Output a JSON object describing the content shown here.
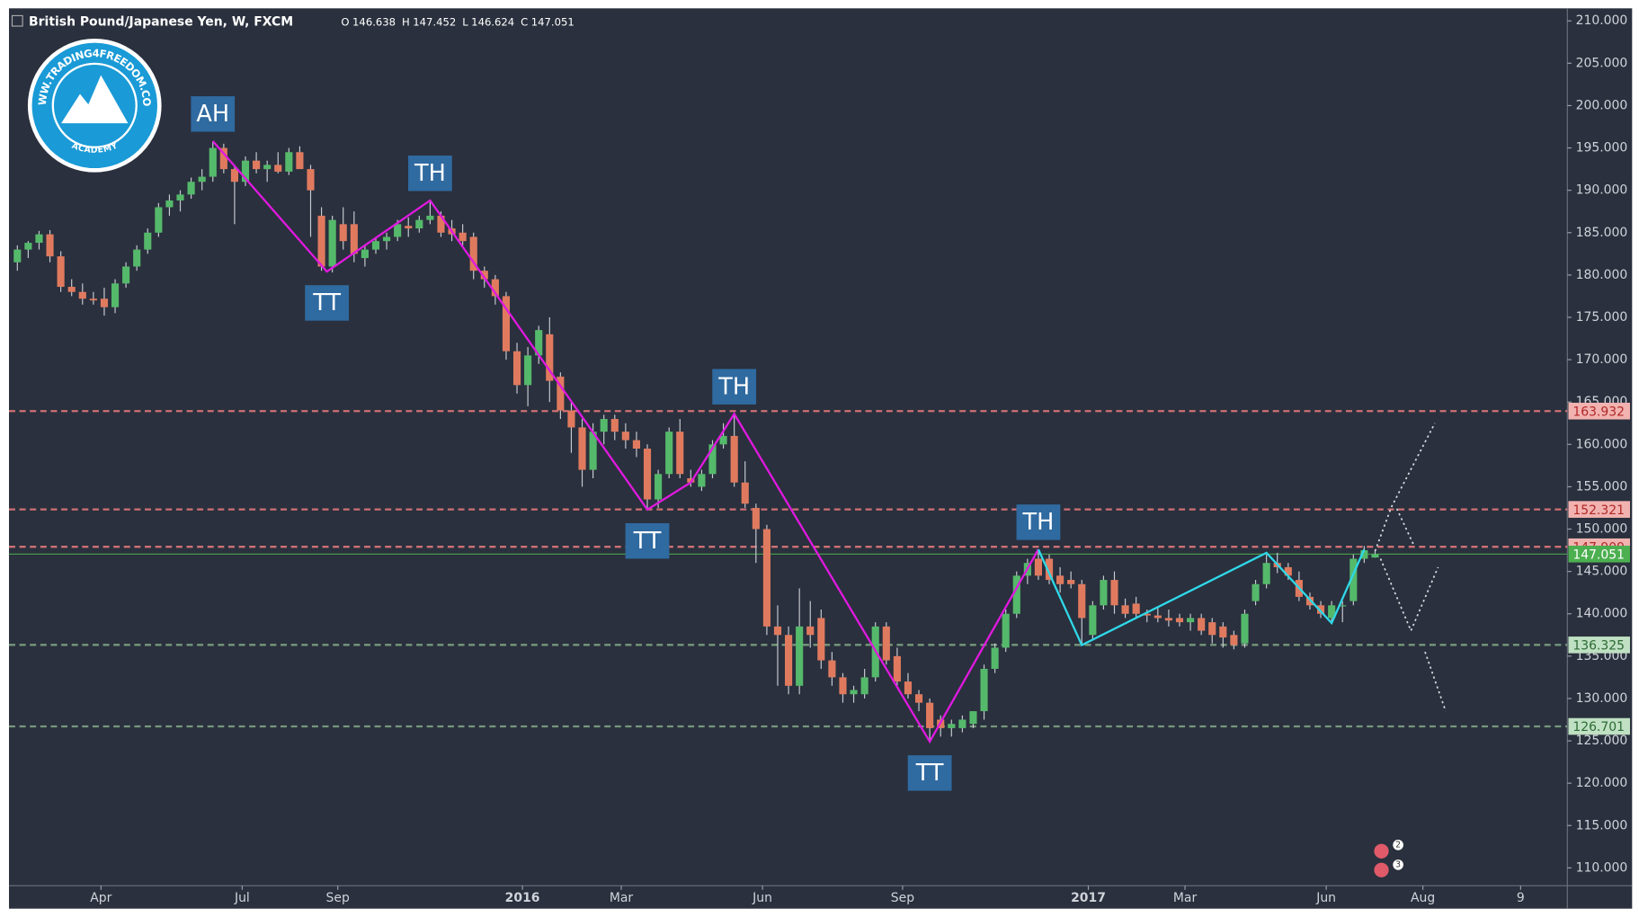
{
  "header": {
    "symbol": "British Pound/Japanese Yen, W, FXCM",
    "ohlc": [
      {
        "key": "O",
        "value": 146.638
      },
      {
        "key": "H",
        "value": 147.452
      },
      {
        "key": "L",
        "value": 146.624
      },
      {
        "key": "C",
        "value": 147.051
      }
    ]
  },
  "logo": {
    "ring_text": "WWW.TRADING4FREEDOM.COM",
    "bottom_text": "ACADEMY"
  },
  "badges": [
    "2",
    "3"
  ],
  "chart_data": {
    "type": "candlestick",
    "up_color": "#55b96b",
    "down_color": "#e07a5f",
    "wick_color": "#c9ccd3",
    "xlim": [
      -0.77,
      142.7
    ],
    "xticks": [
      {
        "value": 7.7,
        "label": "Apr"
      },
      {
        "value": 20.7,
        "label": "Jul"
      },
      {
        "value": 29.5,
        "label": "Sep"
      },
      {
        "value": 46.5,
        "label": "2016"
      },
      {
        "value": 55.6,
        "label": "Mar"
      },
      {
        "value": 68.6,
        "label": "Jun"
      },
      {
        "value": 81.5,
        "label": "Sep"
      },
      {
        "value": 98.6,
        "label": "2017"
      },
      {
        "value": 107.5,
        "label": "Mar"
      },
      {
        "value": 120.5,
        "label": "Jun"
      },
      {
        "value": 129.4,
        "label": "Aug"
      },
      {
        "value": 138.4,
        "label": "9"
      }
    ],
    "ylim": [
      107.9,
      211.48
    ],
    "yticks": [
      {
        "value": 110,
        "label": "110.000"
      },
      {
        "value": 115,
        "label": "115.000"
      },
      {
        "value": 120,
        "label": "120.000"
      },
      {
        "value": 125,
        "label": "125.000"
      },
      {
        "value": 130,
        "label": "130.000"
      },
      {
        "value": 135,
        "label": "135.000"
      },
      {
        "value": 140,
        "label": "140.000"
      },
      {
        "value": 145,
        "label": "145.000"
      },
      {
        "value": 150,
        "label": "150.000"
      },
      {
        "value": 155,
        "label": "155.000"
      },
      {
        "value": 160,
        "label": "160.000"
      },
      {
        "value": 165,
        "label": "165.000"
      },
      {
        "value": 170,
        "label": "170.000"
      },
      {
        "value": 175,
        "label": "175.000"
      },
      {
        "value": 180,
        "label": "180.000"
      },
      {
        "value": 185,
        "label": "185.000"
      },
      {
        "value": 190,
        "label": "190.000"
      },
      {
        "value": 195,
        "label": "195.000"
      },
      {
        "value": 200,
        "label": "200.000"
      },
      {
        "value": 205,
        "label": "205.000"
      },
      {
        "value": 210,
        "label": "210.000"
      }
    ],
    "candles": [
      [
        181.5,
        183.5,
        180.5,
        183
      ],
      [
        183,
        184,
        182,
        183.8
      ],
      [
        183.8,
        185.2,
        183,
        184.8
      ],
      [
        184.8,
        185.3,
        181.5,
        182.2
      ],
      [
        182.2,
        182.8,
        178,
        178.6
      ],
      [
        178.6,
        179.5,
        177.5,
        178
      ],
      [
        178,
        179,
        176.5,
        177.2
      ],
      [
        177.2,
        178,
        176.5,
        177
      ],
      [
        177.2,
        178.5,
        175.2,
        176.2
      ],
      [
        176.2,
        179.5,
        175.5,
        179
      ],
      [
        179,
        181.5,
        178.5,
        181
      ],
      [
        181,
        183.5,
        180.5,
        183
      ],
      [
        183,
        185.5,
        182.5,
        185
      ],
      [
        185,
        188.5,
        184.5,
        188
      ],
      [
        188,
        189.5,
        187,
        188.8
      ],
      [
        188.8,
        190,
        187.5,
        189.5
      ],
      [
        189.5,
        191.5,
        189,
        191
      ],
      [
        191,
        192.5,
        190,
        191.6
      ],
      [
        191.6,
        195.8,
        191,
        195
      ],
      [
        195,
        195.5,
        192,
        192.5
      ],
      [
        192.5,
        193,
        186,
        191
      ],
      [
        191,
        194,
        190.5,
        193.5
      ],
      [
        193.5,
        194.5,
        192,
        192.5
      ],
      [
        192.5,
        193.5,
        191,
        193
      ],
      [
        193,
        194.5,
        192,
        192.2
      ],
      [
        192.2,
        195,
        191.8,
        194.5
      ],
      [
        194.5,
        195.2,
        193,
        192.5
      ],
      [
        192.5,
        193,
        184.5,
        190
      ],
      [
        187,
        188,
        180.5,
        181
      ],
      [
        181,
        187,
        180.3,
        186.5
      ],
      [
        186,
        188,
        183,
        184
      ],
      [
        186,
        187.5,
        181.5,
        182.5
      ],
      [
        182,
        183.5,
        181,
        183
      ],
      [
        183,
        184.5,
        182.5,
        184
      ],
      [
        184,
        185,
        183,
        184.5
      ],
      [
        184.5,
        186.5,
        184,
        186
      ],
      [
        185.8,
        186.8,
        184.5,
        185.5
      ],
      [
        185.5,
        187,
        185,
        186.5
      ],
      [
        186.5,
        188.8,
        186,
        187
      ],
      [
        187,
        187.5,
        184.5,
        185
      ],
      [
        185.5,
        186.5,
        184,
        184.8
      ],
      [
        185,
        186,
        183.5,
        184
      ],
      [
        184.5,
        185,
        179.5,
        180.5
      ],
      [
        180.5,
        181,
        178.5,
        179.5
      ],
      [
        179.5,
        180,
        176.5,
        177.5
      ],
      [
        177.5,
        178,
        170,
        171
      ],
      [
        171,
        172,
        166,
        167
      ],
      [
        167,
        171.5,
        164.5,
        170.5
      ],
      [
        170.5,
        174,
        169.5,
        173.5
      ],
      [
        173,
        175,
        165,
        167.5
      ],
      [
        168,
        168.5,
        163,
        164
      ],
      [
        164,
        165,
        159,
        162
      ],
      [
        162,
        163,
        155,
        157
      ],
      [
        157,
        162.5,
        156,
        161.5
      ],
      [
        161.5,
        163.5,
        160,
        163
      ],
      [
        163,
        163.5,
        160.5,
        161.5
      ],
      [
        161.5,
        162.5,
        159.5,
        160.5
      ],
      [
        160.5,
        161.5,
        158.5,
        159.5
      ],
      [
        159.5,
        160,
        152.3,
        153.5
      ],
      [
        153.5,
        157,
        152.5,
        156.5
      ],
      [
        156.5,
        162,
        156,
        161.5
      ],
      [
        161.5,
        163,
        156,
        156.5
      ],
      [
        156,
        157,
        155,
        155.5
      ],
      [
        155,
        157,
        154.5,
        156.5
      ],
      [
        156.5,
        160.5,
        156,
        160
      ],
      [
        160,
        162.5,
        159.5,
        161
      ],
      [
        161,
        163.6,
        155,
        155.5
      ],
      [
        155.5,
        158,
        152.5,
        153
      ],
      [
        152.5,
        153,
        146,
        150
      ],
      [
        150,
        150.5,
        137.5,
        138.5
      ],
      [
        138.5,
        141,
        131.5,
        137.5
      ],
      [
        137.5,
        138.5,
        130.5,
        131.5
      ],
      [
        131.5,
        143,
        130.5,
        138.5
      ],
      [
        138.5,
        141.5,
        136,
        137.5
      ],
      [
        139.5,
        140.5,
        133.5,
        134.5
      ],
      [
        134.5,
        135.5,
        131.5,
        132.5
      ],
      [
        132.5,
        133,
        129.5,
        130.5
      ],
      [
        130.5,
        131.5,
        129.5,
        131
      ],
      [
        130.5,
        133.5,
        130,
        132.5
      ],
      [
        132.5,
        139,
        132,
        138.5
      ],
      [
        138.5,
        139,
        134,
        134.5
      ],
      [
        135,
        136,
        131.5,
        132
      ],
      [
        132,
        133,
        130,
        130.5
      ],
      [
        130.5,
        131,
        128.5,
        129.5
      ],
      [
        129.5,
        130,
        124.9,
        126.5
      ],
      [
        127.5,
        128,
        125.5,
        126.5
      ],
      [
        126.5,
        127.5,
        125.5,
        127
      ],
      [
        126.5,
        128,
        126,
        127.5
      ],
      [
        127,
        128.5,
        126.5,
        128.5
      ],
      [
        128.5,
        134,
        127.5,
        133.5
      ],
      [
        133.5,
        136.5,
        133,
        136
      ],
      [
        136,
        140.5,
        135.5,
        140
      ],
      [
        140,
        145,
        139.5,
        144.5
      ],
      [
        144.5,
        146.5,
        143.5,
        146
      ],
      [
        146.5,
        147.6,
        144,
        144.5
      ],
      [
        146.5,
        147,
        143.5,
        144
      ],
      [
        144.5,
        145.5,
        142.5,
        143.5
      ],
      [
        144,
        145,
        143,
        143.5
      ],
      [
        143.5,
        144,
        136.3,
        139.5
      ],
      [
        137.5,
        141.5,
        137,
        141
      ],
      [
        141,
        144.5,
        140.5,
        144
      ],
      [
        144,
        145,
        140,
        141
      ],
      [
        141,
        141.8,
        139.5,
        140
      ],
      [
        141.2,
        142,
        139.5,
        140
      ],
      [
        140,
        140.5,
        139,
        139.8
      ],
      [
        139.8,
        140.8,
        139,
        139.5
      ],
      [
        139.5,
        140.5,
        138.5,
        139.2
      ],
      [
        139.5,
        140,
        138.5,
        139
      ],
      [
        139,
        140,
        138,
        139.5
      ],
      [
        139.5,
        140,
        137.5,
        138
      ],
      [
        139,
        139.5,
        136.5,
        137.5
      ],
      [
        138.5,
        139,
        136,
        137.2
      ],
      [
        137.5,
        138,
        135.8,
        136.3
      ],
      [
        136.5,
        140.5,
        136,
        140
      ],
      [
        141.5,
        144,
        141,
        143.5
      ],
      [
        143.5,
        147,
        143,
        146
      ],
      [
        146,
        147.2,
        144.8,
        145.5
      ],
      [
        145.5,
        146,
        144,
        144.5
      ],
      [
        144,
        145,
        141.5,
        142
      ],
      [
        142,
        142.5,
        140.5,
        141
      ],
      [
        141,
        141.5,
        139.5,
        140
      ],
      [
        139.5,
        141.5,
        138.9,
        141
      ],
      [
        141,
        141.5,
        139,
        141
      ],
      [
        141.5,
        147,
        141,
        146.5
      ],
      [
        146.5,
        148,
        146,
        147.5
      ],
      [
        146.638,
        147.452,
        146.624,
        147.051
      ]
    ],
    "levels": [
      {
        "value": 163.932,
        "color": "#e0787b",
        "style": "dashed"
      },
      {
        "value": 152.321,
        "color": "#e0787b",
        "style": "dashed"
      },
      {
        "value": 147.909,
        "color": "#e0787b",
        "style": "dashed"
      },
      {
        "value": 147.051,
        "color": "#4caf50",
        "style": "solid"
      },
      {
        "value": 136.325,
        "color": "#7fa383",
        "style": "dashed"
      },
      {
        "value": 126.701,
        "color": "#7fa383",
        "style": "dashed"
      }
    ],
    "zigzags": [
      {
        "color": "#e019e0",
        "points": [
          {
            "x": 18,
            "y": 195.8,
            "label": "AH"
          },
          {
            "x": 28.5,
            "y": 180.4,
            "label": "TT"
          },
          {
            "x": 38,
            "y": 188.8,
            "label": "TH"
          },
          {
            "x": 58,
            "y": 152.3,
            "label": "TT"
          },
          {
            "x": 62,
            "y": 155.5,
            "label": null
          },
          {
            "x": 66,
            "y": 163.6,
            "label": "TH"
          },
          {
            "x": 84,
            "y": 124.9,
            "label": "TT"
          },
          {
            "x": 94,
            "y": 147.6,
            "label": "TH"
          }
        ]
      },
      {
        "color": "#2fd8e8",
        "points": [
          {
            "x": 94,
            "y": 147.6,
            "label": null
          },
          {
            "x": 98,
            "y": 136.3,
            "label": null
          },
          {
            "x": 115,
            "y": 147.2,
            "label": null
          },
          {
            "x": 121,
            "y": 138.9,
            "label": null
          },
          {
            "x": 124,
            "y": 147.6,
            "label": null
          }
        ]
      }
    ],
    "projections": [
      {
        "x": [
          125,
          126.5,
          130.5
        ],
        "y": [
          147.4,
          152.6,
          162.5
        ]
      },
      {
        "x": [
          127,
          128.6
        ],
        "y": [
          152.4,
          148
        ]
      },
      {
        "x": [
          125.5,
          128.3,
          130.8
        ],
        "y": [
          146.5,
          138,
          145.5
        ]
      },
      {
        "x": [
          129.6,
          131.5
        ],
        "y": [
          135.5,
          128.5
        ]
      }
    ]
  }
}
